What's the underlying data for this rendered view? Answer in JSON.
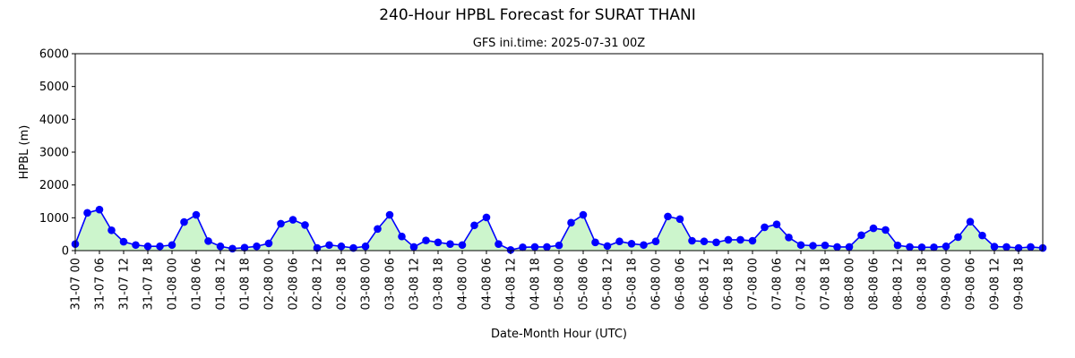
{
  "chart_data": {
    "type": "area",
    "title": "240-Hour HPBL Forecast for SURAT THANI",
    "subtitle": "GFS ini.time: 2025-07-31 00Z",
    "xlabel": "Date-Month Hour (UTC)",
    "ylabel": "HPBL (m)",
    "ylim": [
      0,
      6000
    ],
    "yticks": [
      0,
      1000,
      2000,
      3000,
      4000,
      5000,
      6000
    ],
    "xtick_labels": [
      "31-07 00",
      "31-07 06",
      "31-07 12",
      "31-07 18",
      "01-08 00",
      "01-08 06",
      "01-08 12",
      "01-08 18",
      "02-08 00",
      "02-08 06",
      "02-08 12",
      "02-08 18",
      "03-08 00",
      "03-08 06",
      "03-08 12",
      "03-08 18",
      "04-08 00",
      "04-08 06",
      "04-08 12",
      "04-08 18",
      "05-08 00",
      "05-08 06",
      "05-08 12",
      "05-08 18",
      "06-08 00",
      "06-08 06",
      "06-08 12",
      "06-08 18",
      "07-08 00",
      "07-08 06",
      "07-08 12",
      "07-08 18",
      "08-08 00",
      "08-08 06",
      "08-08 12",
      "08-08 18",
      "09-08 00",
      "09-08 06",
      "09-08 12",
      "09-08 18"
    ],
    "x_interval_hours": 3,
    "xlim_hours": [
      0,
      240
    ],
    "grid": false,
    "line_color": "#0000ff",
    "fill_color": "#ccf5cc",
    "series": [
      {
        "values": [
          200,
          1150,
          1250,
          620,
          270,
          170,
          130,
          130,
          170,
          870,
          1090,
          290,
          130,
          60,
          90,
          130,
          220,
          820,
          940,
          780,
          80,
          170,
          130,
          80,
          130,
          660,
          1090,
          430,
          110,
          310,
          250,
          200,
          170,
          770,
          1010,
          200,
          20,
          100,
          110,
          110,
          160,
          850,
          1090,
          250,
          140,
          280,
          210,
          170,
          280,
          1040,
          960,
          300,
          280,
          250,
          330,
          330,
          300,
          710,
          800,
          400,
          170,
          150,
          160,
          110,
          110,
          470,
          680,
          630,
          160,
          110,
          100,
          100,
          130,
          410,
          880,
          460,
          120,
          110,
          80,
          110,
          80
        ]
      }
    ]
  }
}
